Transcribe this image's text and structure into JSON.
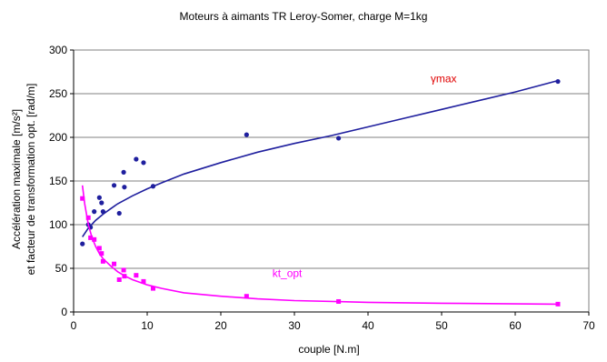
{
  "chart_data": {
    "type": "scatter",
    "title": "Moteurs à aimants TR Leroy-Somer, charge  M=1kg",
    "xlabel": "couple [N.m]",
    "ylabel_line1": "Accélération maximale [m/s²]",
    "ylabel_line2": "et facteur de transformation opt. [rad/m]",
    "xlim": [
      0,
      70
    ],
    "ylim": [
      0,
      300
    ],
    "xticks": [
      "0",
      "10",
      "20",
      "30",
      "40",
      "50",
      "60",
      "70"
    ],
    "yticks": [
      "0",
      "50",
      "100",
      "150",
      "200",
      "250",
      "300"
    ],
    "grid": "horizontal",
    "series": [
      {
        "name": "γmax",
        "color": "#1f1f9e",
        "marker": "circle",
        "points": [
          [
            1.2,
            78
          ],
          [
            2.0,
            100
          ],
          [
            2.3,
            97
          ],
          [
            2.8,
            115
          ],
          [
            3.5,
            131
          ],
          [
            3.8,
            125
          ],
          [
            4.0,
            115
          ],
          [
            5.5,
            145
          ],
          [
            6.2,
            113
          ],
          [
            6.8,
            160
          ],
          [
            6.9,
            143
          ],
          [
            8.5,
            175
          ],
          [
            9.5,
            171
          ],
          [
            10.8,
            144
          ],
          [
            23.5,
            203
          ],
          [
            36.0,
            199
          ],
          [
            65.8,
            264
          ]
        ],
        "fit": [
          [
            1.2,
            86
          ],
          [
            2,
            96
          ],
          [
            3,
            105
          ],
          [
            4,
            112
          ],
          [
            5,
            118
          ],
          [
            6,
            124
          ],
          [
            8,
            133
          ],
          [
            10,
            141
          ],
          [
            12,
            148
          ],
          [
            15,
            158
          ],
          [
            20,
            171
          ],
          [
            25,
            183
          ],
          [
            30,
            193
          ],
          [
            35,
            202
          ],
          [
            40,
            212
          ],
          [
            45,
            222
          ],
          [
            50,
            232
          ],
          [
            55,
            242
          ],
          [
            60,
            252
          ],
          [
            65.8,
            265
          ]
        ]
      },
      {
        "name": "kt_opt",
        "color": "#ff00ff",
        "marker": "square",
        "points": [
          [
            1.2,
            130
          ],
          [
            2.0,
            108
          ],
          [
            2.3,
            85
          ],
          [
            2.8,
            83
          ],
          [
            3.5,
            73
          ],
          [
            3.8,
            67
          ],
          [
            4.0,
            58
          ],
          [
            5.5,
            55
          ],
          [
            6.2,
            37
          ],
          [
            6.8,
            48
          ],
          [
            6.9,
            41
          ],
          [
            8.5,
            42
          ],
          [
            9.5,
            35
          ],
          [
            10.8,
            27
          ],
          [
            23.5,
            18
          ],
          [
            36.0,
            12
          ],
          [
            65.8,
            9
          ]
        ],
        "fit": [
          [
            1.2,
            145
          ],
          [
            1.5,
            124
          ],
          [
            2,
            100
          ],
          [
            2.5,
            85
          ],
          [
            3,
            75
          ],
          [
            3.5,
            67
          ],
          [
            4,
            61
          ],
          [
            5,
            53
          ],
          [
            6,
            46
          ],
          [
            7,
            41
          ],
          [
            8,
            37
          ],
          [
            10,
            31
          ],
          [
            12,
            27
          ],
          [
            15,
            22
          ],
          [
            20,
            18
          ],
          [
            25,
            15
          ],
          [
            30,
            13
          ],
          [
            40,
            11
          ],
          [
            50,
            10
          ],
          [
            65.8,
            9
          ]
        ]
      }
    ],
    "annotations": [
      {
        "text": "γmax",
        "series": 0,
        "x": 48.5,
        "y": 263
      },
      {
        "text": "kt_opt",
        "series": 1,
        "x": 27,
        "y": 40
      }
    ]
  }
}
